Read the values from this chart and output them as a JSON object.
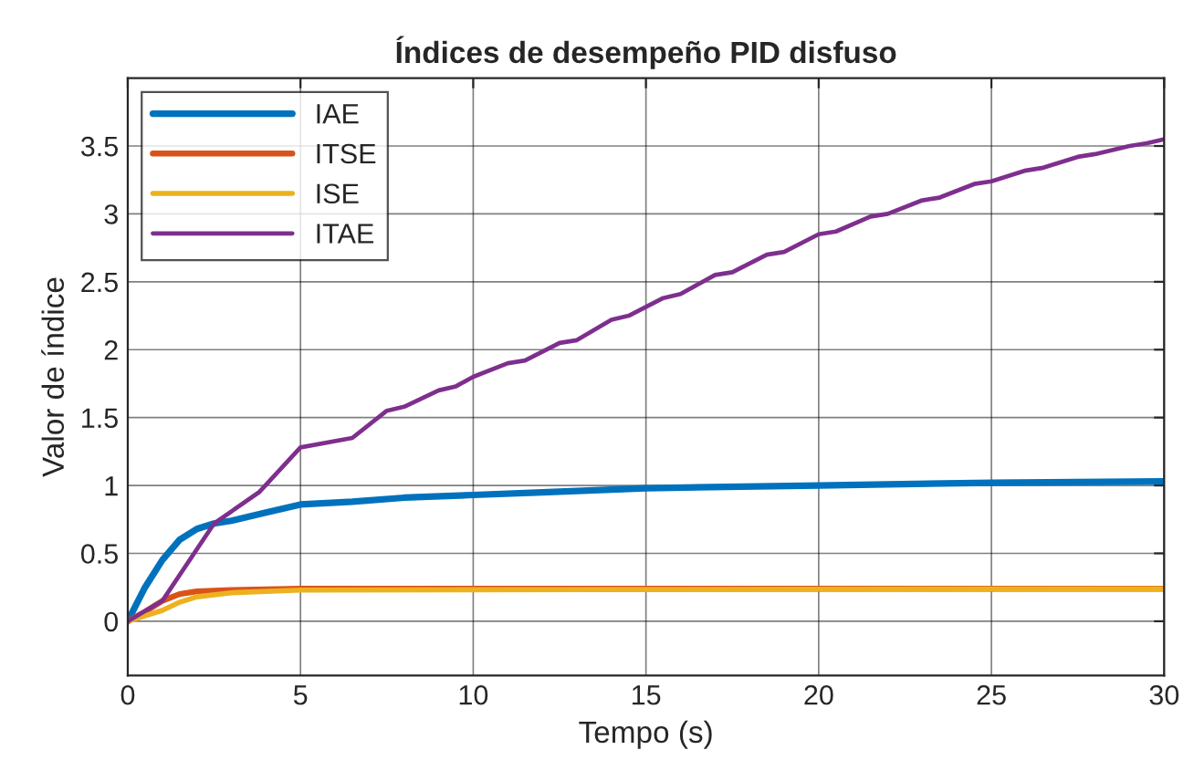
{
  "chart_data": {
    "type": "line",
    "title": "Índices de desempeño PID disfuso",
    "xlabel": "Tempo (s)",
    "ylabel": "Valor de índice",
    "xlim": [
      0,
      30
    ],
    "xticks": [
      0,
      5,
      10,
      15,
      20,
      25,
      30
    ],
    "ylim": [
      -0.4,
      4
    ],
    "yticks": [
      0,
      0.5,
      1,
      1.5,
      2,
      2.5,
      3,
      3.5
    ],
    "grid": true,
    "legend": "top left",
    "series": [
      {
        "name": "IAE",
        "color": "#0072bd",
        "x": [
          0,
          0.5,
          1,
          1.5,
          2,
          2.5,
          3,
          4,
          5,
          6.5,
          8,
          10,
          12,
          15,
          20,
          25,
          30
        ],
        "values": [
          0,
          0.25,
          0.45,
          0.6,
          0.68,
          0.72,
          0.74,
          0.8,
          0.86,
          0.88,
          0.91,
          0.93,
          0.95,
          0.98,
          1.0,
          1.02,
          1.03
        ]
      },
      {
        "name": "ITSE",
        "color": "#d95319",
        "x": [
          0,
          0.5,
          1,
          1.5,
          2,
          3,
          5,
          30
        ],
        "values": [
          0,
          0.07,
          0.15,
          0.2,
          0.22,
          0.23,
          0.24,
          0.24
        ]
      },
      {
        "name": "ISE",
        "color": "#edb120",
        "x": [
          0,
          1,
          1.5,
          2,
          3,
          5,
          30
        ],
        "values": [
          0,
          0.08,
          0.14,
          0.18,
          0.21,
          0.23,
          0.24
        ]
      },
      {
        "name": "ITAE",
        "color": "#7e2f8e",
        "x": [
          0,
          1,
          2.5,
          3.8,
          5,
          6.5,
          7.5,
          8,
          9,
          9.5,
          10,
          11,
          11.5,
          12.5,
          13,
          14,
          14.5,
          15.5,
          16,
          17,
          17.5,
          18.5,
          19,
          20,
          20.5,
          21.5,
          22,
          23,
          23.5,
          24.5,
          25,
          26,
          26.5,
          27.5,
          28,
          29,
          29.5,
          30
        ],
        "values": [
          0,
          0.15,
          0.72,
          0.95,
          1.28,
          1.35,
          1.55,
          1.58,
          1.7,
          1.73,
          1.8,
          1.9,
          1.92,
          2.05,
          2.07,
          2.22,
          2.25,
          2.38,
          2.41,
          2.55,
          2.57,
          2.7,
          2.72,
          2.85,
          2.87,
          2.98,
          3.0,
          3.1,
          3.12,
          3.22,
          3.24,
          3.32,
          3.34,
          3.42,
          3.44,
          3.5,
          3.52,
          3.55
        ]
      }
    ]
  }
}
